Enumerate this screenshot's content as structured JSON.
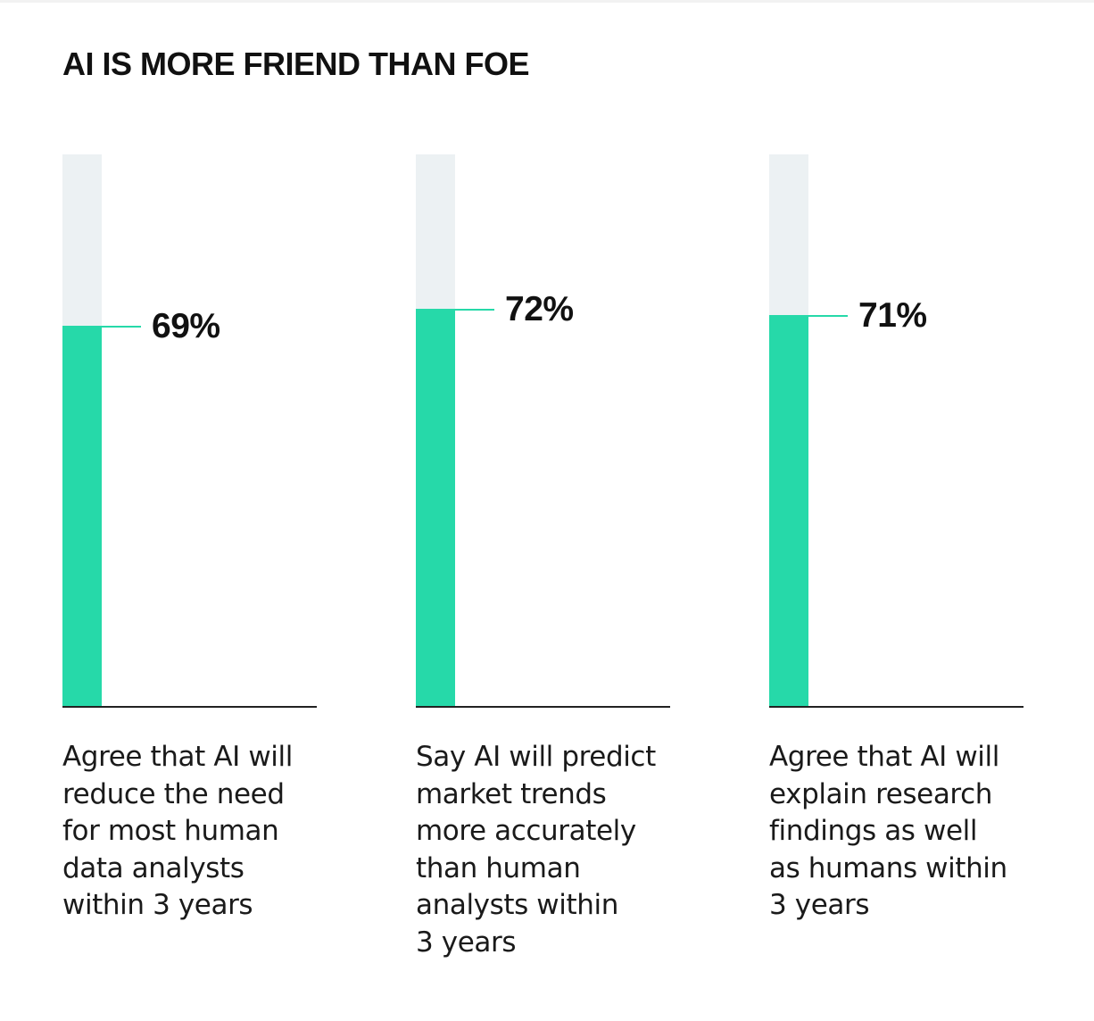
{
  "title": "AI IS MORE FRIEND THAN FOE",
  "colors": {
    "fill": "#26d9a9",
    "track": "#ecf1f3",
    "axis": "#222222",
    "text": "#111111"
  },
  "chart_data": {
    "type": "bar",
    "title": "AI IS MORE FRIEND THAN FOE",
    "ylim": [
      0,
      100
    ],
    "grid": false,
    "bars": [
      {
        "value": 69,
        "label": "69%",
        "caption_lines": [
          "Agree that AI will",
          "reduce the need",
          "for most human",
          "data analysts",
          "within 3 years"
        ]
      },
      {
        "value": 72,
        "label": "72%",
        "caption_lines": [
          "Say AI will predict",
          "market trends",
          "more accurately",
          "than human",
          "analysts within",
          "3 years"
        ]
      },
      {
        "value": 71,
        "label": "71%",
        "caption_lines": [
          "Agree that AI will",
          "explain research",
          "findings as well",
          "as humans within",
          "3 years"
        ]
      }
    ]
  }
}
